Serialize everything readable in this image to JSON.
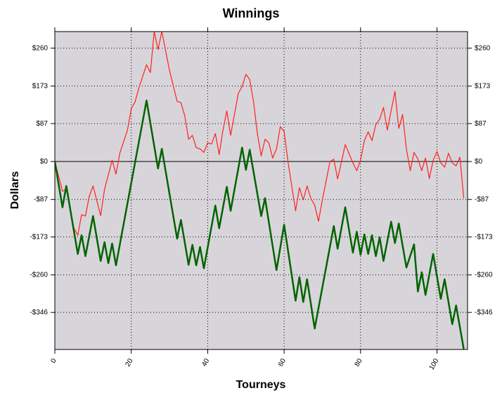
{
  "chart_data": {
    "type": "line",
    "title": "Winnings",
    "xlabel": "Tourneys",
    "ylabel": "Dollars",
    "xlim": [
      0,
      108
    ],
    "ylim": [
      -431,
      298
    ],
    "xticks": [
      0,
      20,
      40,
      60,
      80,
      100
    ],
    "yticks": [
      {
        "value": 260,
        "label": "$260"
      },
      {
        "value": 173,
        "label": "$173"
      },
      {
        "value": 87,
        "label": "$87"
      },
      {
        "value": 0,
        "label": "$0"
      },
      {
        "value": -87,
        "label": "-$87"
      },
      {
        "value": -173,
        "label": "-$173"
      },
      {
        "value": -260,
        "label": "-$260"
      },
      {
        "value": -346,
        "label": "-$346"
      }
    ],
    "grid": true,
    "series": [
      {
        "color": "#ff2020",
        "x": [
          0,
          2,
          3,
          5,
          6,
          7,
          8,
          9,
          10,
          12,
          13,
          15,
          16,
          17,
          19,
          20,
          21,
          22,
          24,
          25,
          26,
          27,
          28,
          30,
          32,
          33,
          34,
          35,
          36,
          37,
          38,
          39,
          40,
          41,
          42,
          43,
          44,
          45,
          46,
          48,
          49,
          50,
          51,
          52,
          53,
          54,
          55,
          56,
          57,
          58,
          59,
          60,
          61,
          63,
          64,
          65,
          66,
          67,
          68,
          69,
          70,
          72,
          73,
          74,
          76,
          78,
          79,
          80,
          81,
          82,
          83,
          84,
          85,
          86,
          87,
          89,
          90,
          91,
          92,
          93,
          94,
          95,
          96,
          97,
          98,
          99,
          100,
          101,
          102,
          103,
          104,
          105,
          106,
          107
        ],
        "values": [
          0,
          -68,
          -64,
          -153,
          -169,
          -122,
          -125,
          -80,
          -56,
          -124,
          -64,
          3,
          -29,
          19,
          72,
          121,
          137,
          169,
          222,
          204,
          298,
          257,
          298,
          209,
          138,
          135,
          105,
          51,
          60,
          32,
          29,
          21,
          43,
          40,
          64,
          16,
          72,
          116,
          60,
          156,
          172,
          200,
          188,
          137,
          64,
          13,
          51,
          43,
          8,
          29,
          80,
          69,
          0,
          -113,
          -60,
          -88,
          -56,
          -85,
          -100,
          -137,
          -88,
          0,
          5,
          -40,
          39,
          -3,
          -21,
          3,
          48,
          68,
          48,
          85,
          97,
          124,
          72,
          161,
          76,
          108,
          29,
          -21,
          21,
          6,
          -21,
          8,
          -39,
          3,
          23,
          -3,
          -13,
          19,
          -3,
          -10,
          10,
          -84
        ]
      },
      {
        "color": "#006400",
        "x": [
          0,
          2,
          3,
          6,
          7,
          8,
          10,
          12,
          13,
          14,
          15,
          16,
          24,
          27,
          28,
          32,
          33,
          35,
          36,
          37,
          38,
          39,
          42,
          43,
          45,
          46,
          49,
          50,
          51,
          54,
          55,
          58,
          60,
          63,
          64,
          65,
          66,
          68,
          73,
          74,
          76,
          78,
          79,
          80,
          81,
          82,
          83,
          84,
          85,
          86,
          88,
          89,
          90,
          92,
          94,
          95,
          96,
          97,
          99,
          101,
          102,
          104,
          105,
          107
        ],
        "values": [
          0,
          -105,
          -56,
          -212,
          -169,
          -217,
          -125,
          -228,
          -185,
          -233,
          -188,
          -238,
          140,
          -16,
          29,
          -177,
          -134,
          -237,
          -191,
          -238,
          -196,
          -245,
          -101,
          -153,
          -58,
          -113,
          32,
          -19,
          27,
          -125,
          -84,
          -249,
          -145,
          -319,
          -265,
          -322,
          -270,
          -383,
          -148,
          -200,
          -105,
          -209,
          -161,
          -214,
          -167,
          -212,
          -169,
          -217,
          -174,
          -228,
          -138,
          -187,
          -142,
          -243,
          -190,
          -298,
          -254,
          -306,
          -212,
          -315,
          -270,
          -373,
          -330,
          -430
        ]
      }
    ]
  }
}
